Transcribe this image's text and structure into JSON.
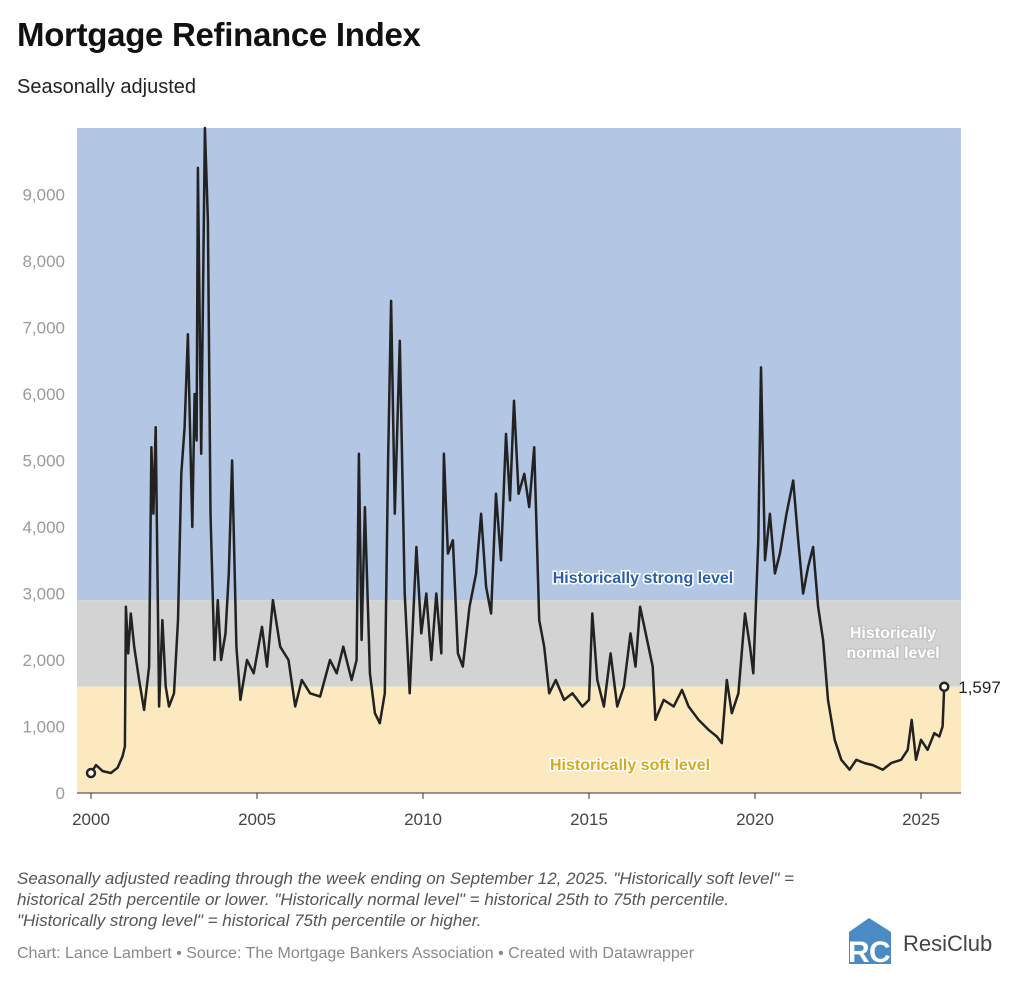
{
  "chart_data": {
    "type": "line",
    "title": "Mortgage Refinance Index",
    "subtitle": "Seasonally adjusted",
    "xlabel": "",
    "ylabel": "",
    "xlim": [
      1999.6,
      2026.2
    ],
    "ylim": [
      0,
      10000
    ],
    "x_ticks": [
      2000,
      2005,
      2010,
      2015,
      2020,
      2025
    ],
    "x_tick_labels": [
      "2000",
      "2005",
      "2010",
      "2015",
      "2020",
      "2025"
    ],
    "y_ticks": [
      0,
      1000,
      2000,
      3000,
      4000,
      5000,
      6000,
      7000,
      8000,
      9000
    ],
    "y_tick_labels": [
      "0",
      "1,000",
      "2,000",
      "3,000",
      "4,000",
      "5,000",
      "6,000",
      "7,000",
      "8,000",
      "9,000"
    ],
    "grid": false,
    "bands": [
      {
        "label": "Historically strong level",
        "from": 2900,
        "to": 10000,
        "color": "#b3c6e3",
        "label_color": "#2b5ea7"
      },
      {
        "label": "Historically normal level",
        "from": 1600,
        "to": 2900,
        "color": "#d3d3d3",
        "label_color": "#ffffff"
      },
      {
        "label": "Historically soft level",
        "from": 0,
        "to": 1600,
        "color": "#fce9bf",
        "label_color": "#d9a91a"
      }
    ],
    "end_label": "1,597",
    "series": [
      {
        "color": "#222222",
        "points": [
          [
            2000.0,
            300
          ],
          [
            2000.15,
            420
          ],
          [
            2000.35,
            330
          ],
          [
            2000.6,
            300
          ],
          [
            2000.8,
            380
          ],
          [
            2000.95,
            550
          ],
          [
            2001.02,
            700
          ],
          [
            2001.05,
            2800
          ],
          [
            2001.12,
            2100
          ],
          [
            2001.2,
            2700
          ],
          [
            2001.3,
            2200
          ],
          [
            2001.45,
            1700
          ],
          [
            2001.6,
            1250
          ],
          [
            2001.75,
            1900
          ],
          [
            2001.82,
            5200
          ],
          [
            2001.88,
            4200
          ],
          [
            2001.95,
            5500
          ],
          [
            2002.05,
            1300
          ],
          [
            2002.15,
            2600
          ],
          [
            2002.25,
            1600
          ],
          [
            2002.35,
            1300
          ],
          [
            2002.5,
            1500
          ],
          [
            2002.62,
            2600
          ],
          [
            2002.72,
            4800
          ],
          [
            2002.82,
            5500
          ],
          [
            2002.92,
            6900
          ],
          [
            2003.0,
            5100
          ],
          [
            2003.05,
            4000
          ],
          [
            2003.12,
            6000
          ],
          [
            2003.18,
            5300
          ],
          [
            2003.22,
            9400
          ],
          [
            2003.32,
            5100
          ],
          [
            2003.43,
            10000
          ],
          [
            2003.52,
            8600
          ],
          [
            2003.6,
            4200
          ],
          [
            2003.72,
            2000
          ],
          [
            2003.82,
            2900
          ],
          [
            2003.92,
            2000
          ],
          [
            2004.05,
            2400
          ],
          [
            2004.15,
            3300
          ],
          [
            2004.25,
            5000
          ],
          [
            2004.38,
            2200
          ],
          [
            2004.5,
            1400
          ],
          [
            2004.7,
            2000
          ],
          [
            2004.9,
            1800
          ],
          [
            2005.15,
            2500
          ],
          [
            2005.3,
            1900
          ],
          [
            2005.48,
            2900
          ],
          [
            2005.7,
            2200
          ],
          [
            2005.95,
            2000
          ],
          [
            2006.15,
            1300
          ],
          [
            2006.35,
            1700
          ],
          [
            2006.6,
            1500
          ],
          [
            2006.9,
            1450
          ],
          [
            2007.2,
            2000
          ],
          [
            2007.4,
            1800
          ],
          [
            2007.6,
            2200
          ],
          [
            2007.85,
            1700
          ],
          [
            2008.0,
            2000
          ],
          [
            2008.07,
            5100
          ],
          [
            2008.15,
            2300
          ],
          [
            2008.25,
            4300
          ],
          [
            2008.4,
            1800
          ],
          [
            2008.55,
            1200
          ],
          [
            2008.7,
            1050
          ],
          [
            2008.85,
            1500
          ],
          [
            2008.95,
            5000
          ],
          [
            2009.04,
            7400
          ],
          [
            2009.15,
            4200
          ],
          [
            2009.3,
            6800
          ],
          [
            2009.45,
            3000
          ],
          [
            2009.6,
            1500
          ],
          [
            2009.8,
            3700
          ],
          [
            2009.95,
            2400
          ],
          [
            2010.1,
            3000
          ],
          [
            2010.25,
            2000
          ],
          [
            2010.4,
            3000
          ],
          [
            2010.55,
            2100
          ],
          [
            2010.63,
            5100
          ],
          [
            2010.75,
            3600
          ],
          [
            2010.9,
            3800
          ],
          [
            2011.05,
            2100
          ],
          [
            2011.2,
            1900
          ],
          [
            2011.4,
            2800
          ],
          [
            2011.6,
            3300
          ],
          [
            2011.75,
            4200
          ],
          [
            2011.9,
            3100
          ],
          [
            2012.05,
            2700
          ],
          [
            2012.2,
            4500
          ],
          [
            2012.35,
            3500
          ],
          [
            2012.5,
            5400
          ],
          [
            2012.62,
            4400
          ],
          [
            2012.74,
            5900
          ],
          [
            2012.88,
            4500
          ],
          [
            2013.05,
            4800
          ],
          [
            2013.2,
            4300
          ],
          [
            2013.35,
            5200
          ],
          [
            2013.5,
            2600
          ],
          [
            2013.65,
            2200
          ],
          [
            2013.8,
            1500
          ],
          [
            2014.0,
            1700
          ],
          [
            2014.25,
            1400
          ],
          [
            2014.5,
            1500
          ],
          [
            2014.8,
            1300
          ],
          [
            2015.0,
            1400
          ],
          [
            2015.1,
            2700
          ],
          [
            2015.25,
            1700
          ],
          [
            2015.45,
            1300
          ],
          [
            2015.65,
            2100
          ],
          [
            2015.85,
            1300
          ],
          [
            2016.05,
            1600
          ],
          [
            2016.25,
            2400
          ],
          [
            2016.4,
            1900
          ],
          [
            2016.54,
            2800
          ],
          [
            2016.75,
            2300
          ],
          [
            2016.92,
            1900
          ],
          [
            2017.0,
            1100
          ],
          [
            2017.25,
            1400
          ],
          [
            2017.55,
            1300
          ],
          [
            2017.8,
            1550
          ],
          [
            2018.0,
            1300
          ],
          [
            2018.3,
            1100
          ],
          [
            2018.6,
            950
          ],
          [
            2018.85,
            850
          ],
          [
            2019.0,
            750
          ],
          [
            2019.15,
            1700
          ],
          [
            2019.3,
            1200
          ],
          [
            2019.5,
            1500
          ],
          [
            2019.7,
            2700
          ],
          [
            2019.85,
            2200
          ],
          [
            2019.95,
            1800
          ],
          [
            2020.1,
            3800
          ],
          [
            2020.18,
            6400
          ],
          [
            2020.3,
            3500
          ],
          [
            2020.45,
            4200
          ],
          [
            2020.6,
            3300
          ],
          [
            2020.75,
            3600
          ],
          [
            2020.95,
            4200
          ],
          [
            2021.15,
            4700
          ],
          [
            2021.3,
            3800
          ],
          [
            2021.45,
            3000
          ],
          [
            2021.6,
            3400
          ],
          [
            2021.75,
            3700
          ],
          [
            2021.9,
            2800
          ],
          [
            2022.05,
            2300
          ],
          [
            2022.2,
            1400
          ],
          [
            2022.4,
            800
          ],
          [
            2022.6,
            500
          ],
          [
            2022.85,
            350
          ],
          [
            2023.05,
            500
          ],
          [
            2023.3,
            450
          ],
          [
            2023.55,
            420
          ],
          [
            2023.85,
            350
          ],
          [
            2024.1,
            450
          ],
          [
            2024.4,
            500
          ],
          [
            2024.6,
            650
          ],
          [
            2024.72,
            1100
          ],
          [
            2024.85,
            500
          ],
          [
            2025.0,
            800
          ],
          [
            2025.2,
            650
          ],
          [
            2025.4,
            900
          ],
          [
            2025.55,
            850
          ],
          [
            2025.65,
            1000
          ],
          [
            2025.7,
            1597
          ]
        ]
      }
    ]
  },
  "footnote": "Seasonally adjusted reading through the week ending on September 12, 2025. \"Historically soft level\" = historical 25th percentile or lower. \"Historically normal level\" = historical 25th to 75th percentile. \"Historically strong level\" = historical 75th percentile or higher.",
  "credit": "Chart: Lance Lambert • Source: The Mortgage Bankers Association • Created with Datawrapper",
  "logo": {
    "text": "ResiClub",
    "mark": "RC",
    "color": "#4a8bc4"
  }
}
